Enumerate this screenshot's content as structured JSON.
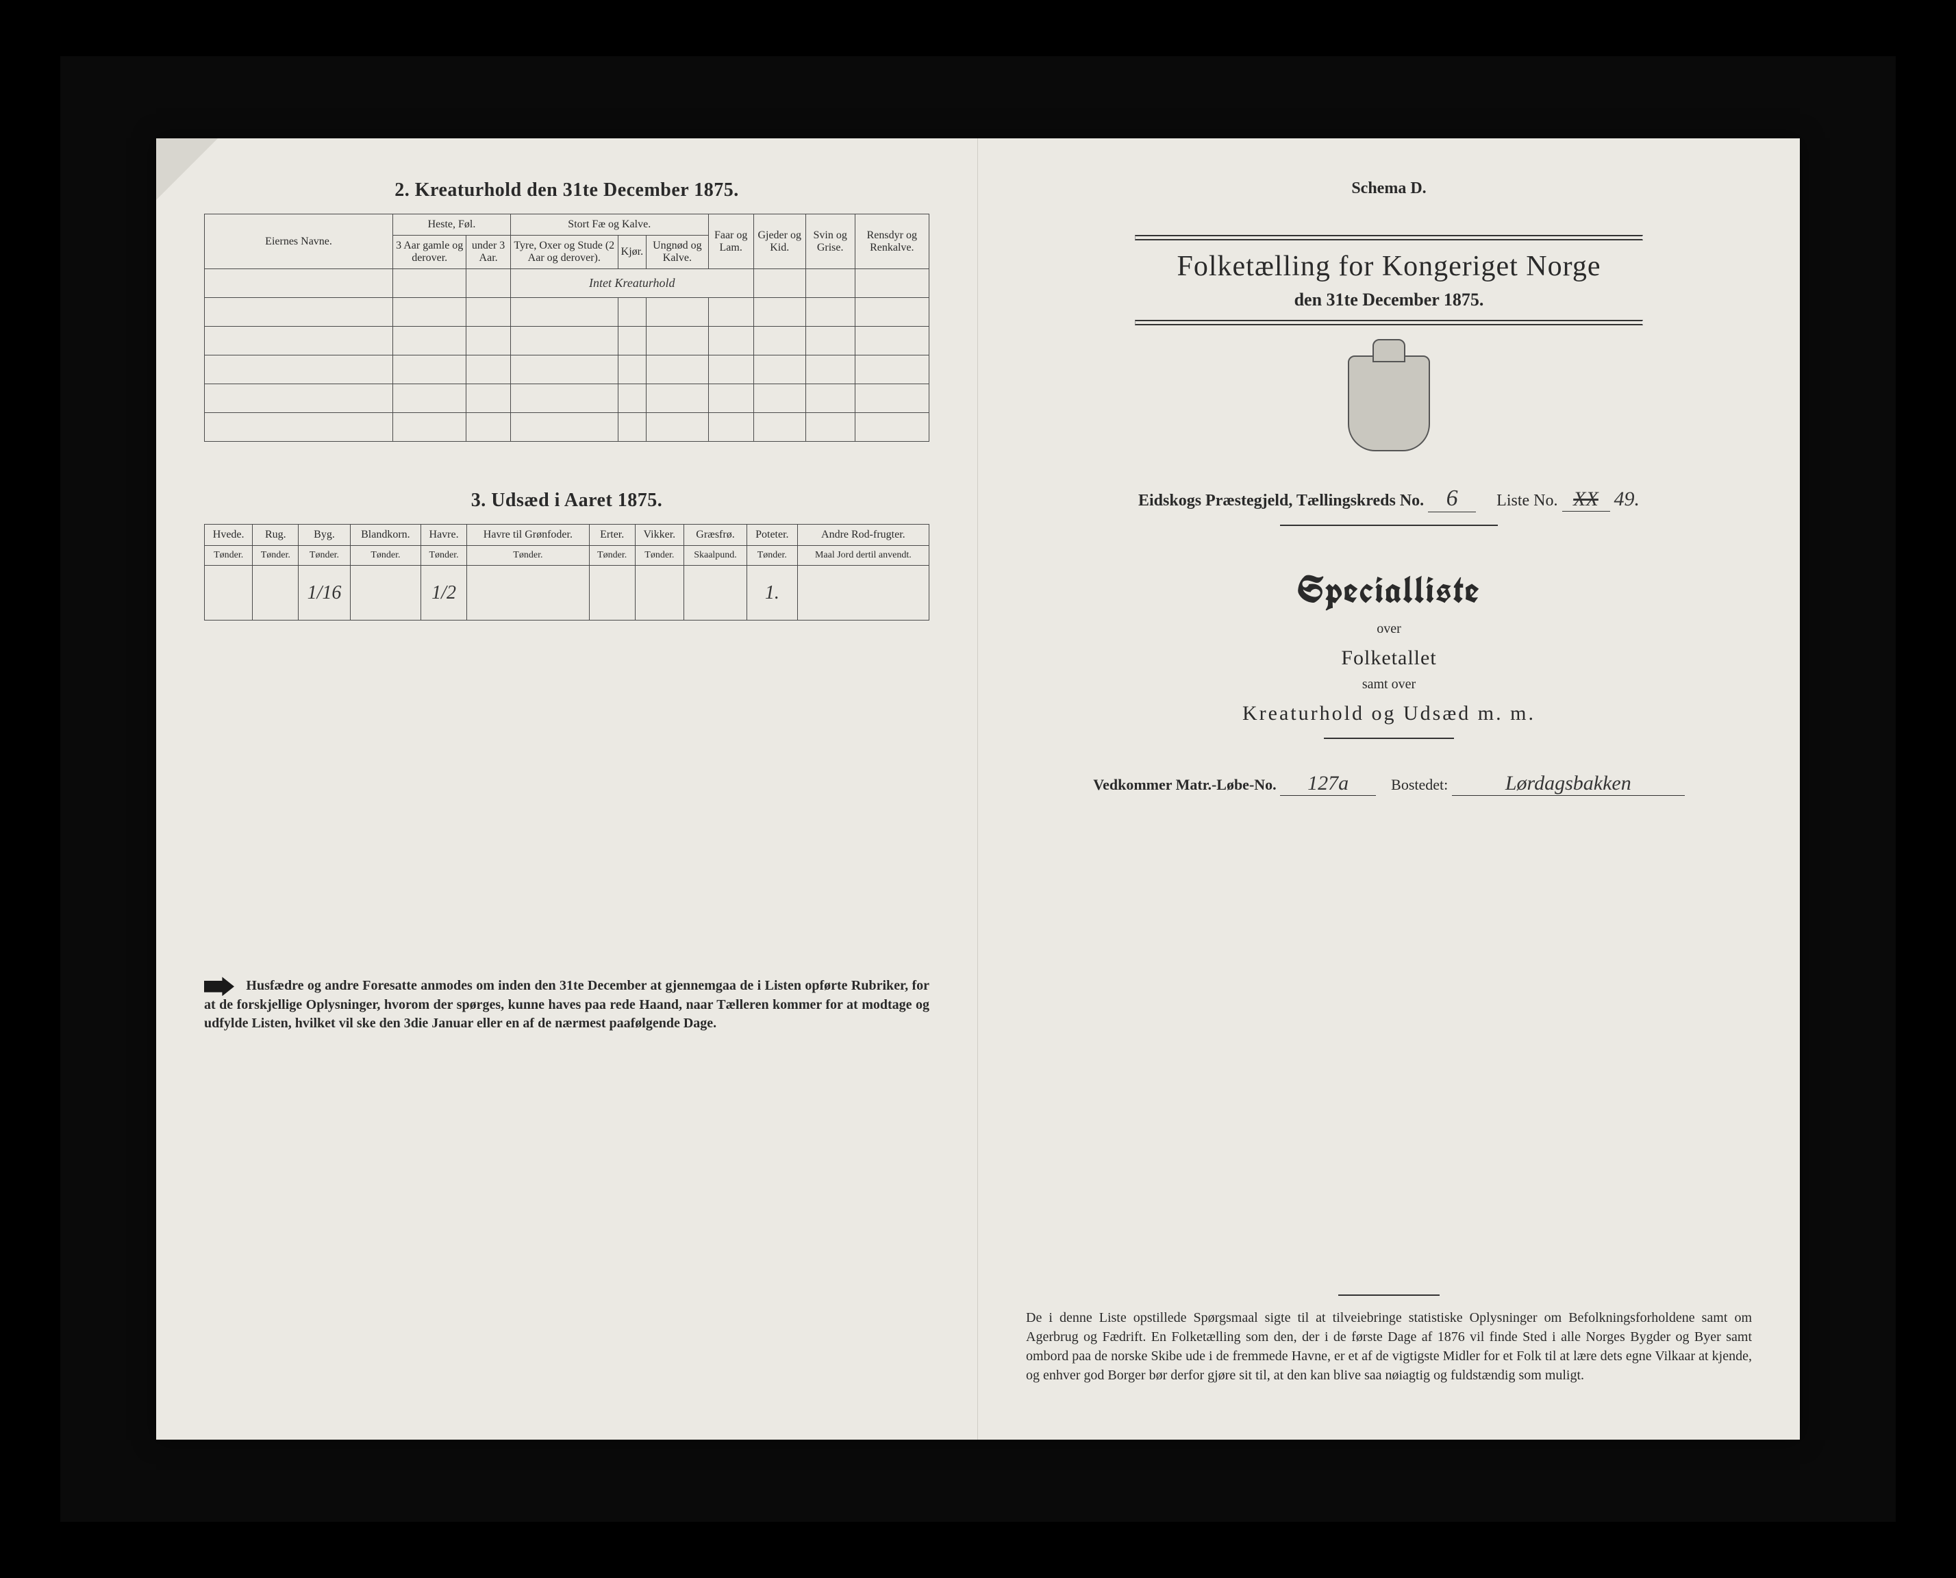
{
  "colors": {
    "page_bg": "#ebe9e3",
    "ink": "#2a2a2a",
    "border": "#4a4a4a",
    "frame_bg": "#000000"
  },
  "left": {
    "section2": {
      "title": "2.  Kreaturhold den 31te December 1875.",
      "col_owner": "Eiernes Navne.",
      "grp_horse": "Heste, Føl.",
      "grp_cattle": "Stort Fæ og Kalve.",
      "h1": "3 Aar gamle og derover.",
      "h2": "under 3 Aar.",
      "c1": "Tyre, Oxer og Stude (2 Aar og derover).",
      "c2": "Kjør.",
      "c3": "Ungnød og Kalve.",
      "col_sheep": "Faar og Lam.",
      "col_goat": "Gjeder og Kid.",
      "col_pig": "Svin og Grise.",
      "col_rein": "Rensdyr og Renkalve.",
      "handwriting": "Intet  Kreaturhold"
    },
    "section3": {
      "title": "3.  Udsæd i Aaret 1875.",
      "cols": [
        {
          "h": "Hvede.",
          "u": "Tønder."
        },
        {
          "h": "Rug.",
          "u": "Tønder."
        },
        {
          "h": "Byg.",
          "u": "Tønder."
        },
        {
          "h": "Blandkorn.",
          "u": "Tønder."
        },
        {
          "h": "Havre.",
          "u": "Tønder."
        },
        {
          "h": "Havre til Grønfoder.",
          "u": "Tønder."
        },
        {
          "h": "Erter.",
          "u": "Tønder."
        },
        {
          "h": "Vikker.",
          "u": "Tønder."
        },
        {
          "h": "Græsfrø.",
          "u": "Skaalpund."
        },
        {
          "h": "Poteter.",
          "u": "Tønder."
        },
        {
          "h": "Andre Rod-frugter.",
          "u": "Maal Jord dertil anvendt."
        }
      ],
      "values": [
        "",
        "",
        "1/16",
        "",
        "1/2",
        "",
        "",
        "",
        "",
        "1.",
        ""
      ]
    },
    "instruction": "Husfædre og andre Foresatte anmodes om inden den 31te December at gjennemgaa de i Listen opførte Rubriker, for at de forskjellige Oplysninger, hvorom der spørges, kunne haves paa rede Haand, naar Tælleren kommer for at modtage og udfylde Listen, hvilket vil ske den 3die Januar eller en af de nærmest paafølgende Dage."
  },
  "right": {
    "schema": "Schema D.",
    "title": "Folketælling for Kongeriget Norge",
    "subtitle": "den 31te December 1875.",
    "parish_label": "Eidskogs Præstegjeld,  Tællingskreds No.",
    "parish_no": "6",
    "list_label": "Liste No.",
    "list_no_strike": "XX",
    "list_no": "49.",
    "special": "Specialliste",
    "over": "over",
    "folketallet": "Folketallet",
    "samt": "samt over",
    "kreatur": "Kreaturhold  og  Udsæd  m. m.",
    "addr_label": "Vedkommer Matr.-Løbe-No.",
    "addr_no": "127a",
    "bostedet_label": "Bostedet:",
    "bostedet": "Lørdagsbakken",
    "paragraph": "De i denne Liste opstillede Spørgsmaal sigte til at tilveiebringe statistiske Oplysninger om Befolkningsforholdene samt om Agerbrug og Fædrift.  En Folketælling som den, der i de første Dage af 1876 vil finde Sted i alle Norges Bygder og Byer samt ombord paa de norske Skibe ude i de fremmede Havne, er et af de vigtigste Midler for et Folk til at lære dets egne Vilkaar at kjende, og enhver god Borger bør derfor gjøre sit til, at den kan blive saa nøiagtig og fuldstændig som muligt."
  }
}
